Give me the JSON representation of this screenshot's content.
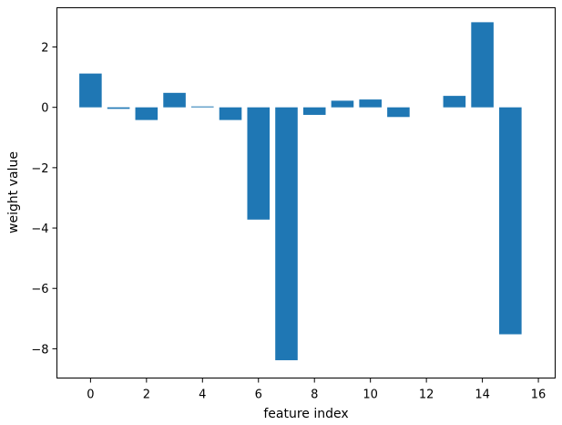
{
  "chart_data": {
    "type": "bar",
    "x": [
      0,
      1,
      2,
      3,
      4,
      5,
      6,
      7,
      8,
      9,
      10,
      11,
      12,
      13,
      14,
      15
    ],
    "values": [
      1.12,
      -0.05,
      -0.42,
      0.48,
      0.03,
      -0.42,
      -3.72,
      -8.38,
      -0.25,
      0.22,
      0.26,
      -0.32,
      0.0,
      0.38,
      2.82,
      -7.52
    ],
    "title": "",
    "xlabel": "feature index",
    "ylabel": "weight value",
    "xlim": [
      -1.2,
      16.6
    ],
    "ylim": [
      -8.97,
      3.3
    ],
    "xticks": [
      0,
      2,
      4,
      6,
      8,
      10,
      12,
      14,
      16
    ],
    "yticks": [
      -8,
      -6,
      -4,
      -2,
      0,
      2
    ],
    "xtick_labels": [
      "0",
      "2",
      "4",
      "6",
      "8",
      "10",
      "12",
      "14",
      "16"
    ],
    "ytick_labels": [
      "−8",
      "−6",
      "−4",
      "−2",
      "0",
      "2"
    ],
    "bar_color": "#1f77b4",
    "grid": false,
    "legend": "none"
  }
}
